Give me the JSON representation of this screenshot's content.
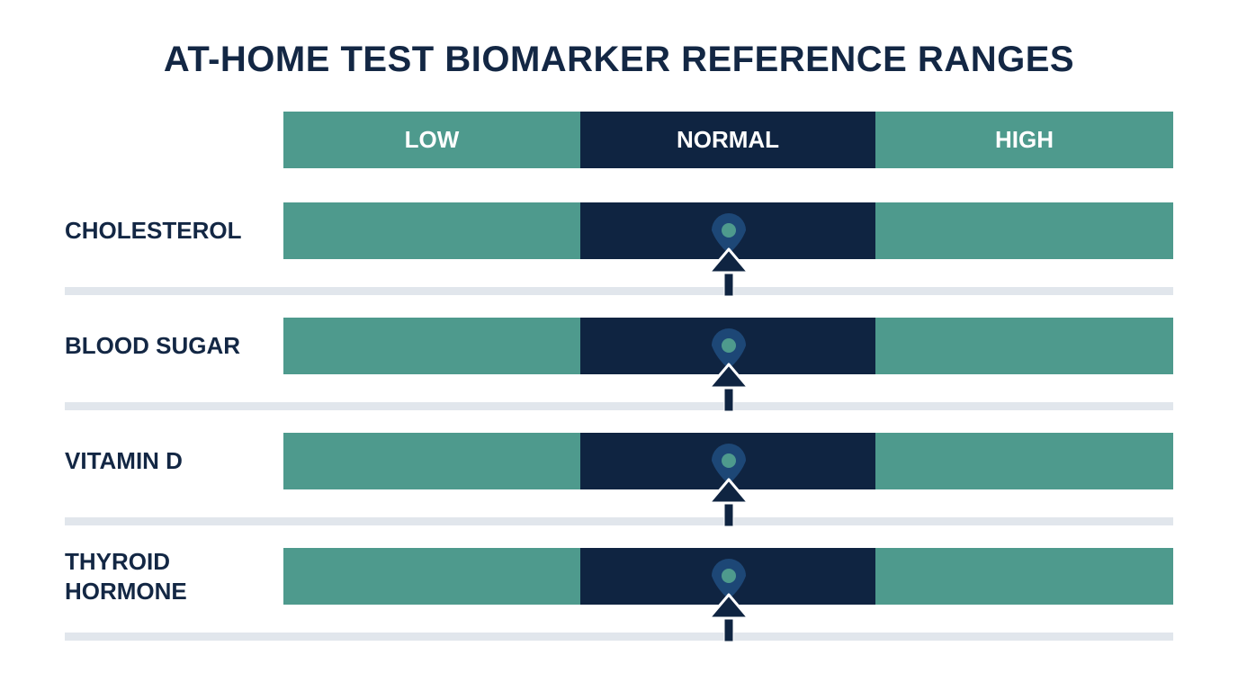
{
  "title": "AT-HOME TEST BIOMARKER REFERENCE RANGES",
  "header": [
    "LOW",
    "NORMAL",
    "HIGH"
  ],
  "rows": [
    "CHOLESTEROL",
    "BLOOD SUGAR",
    "VITAMIN D",
    "THYROID HORMONE"
  ]
}
